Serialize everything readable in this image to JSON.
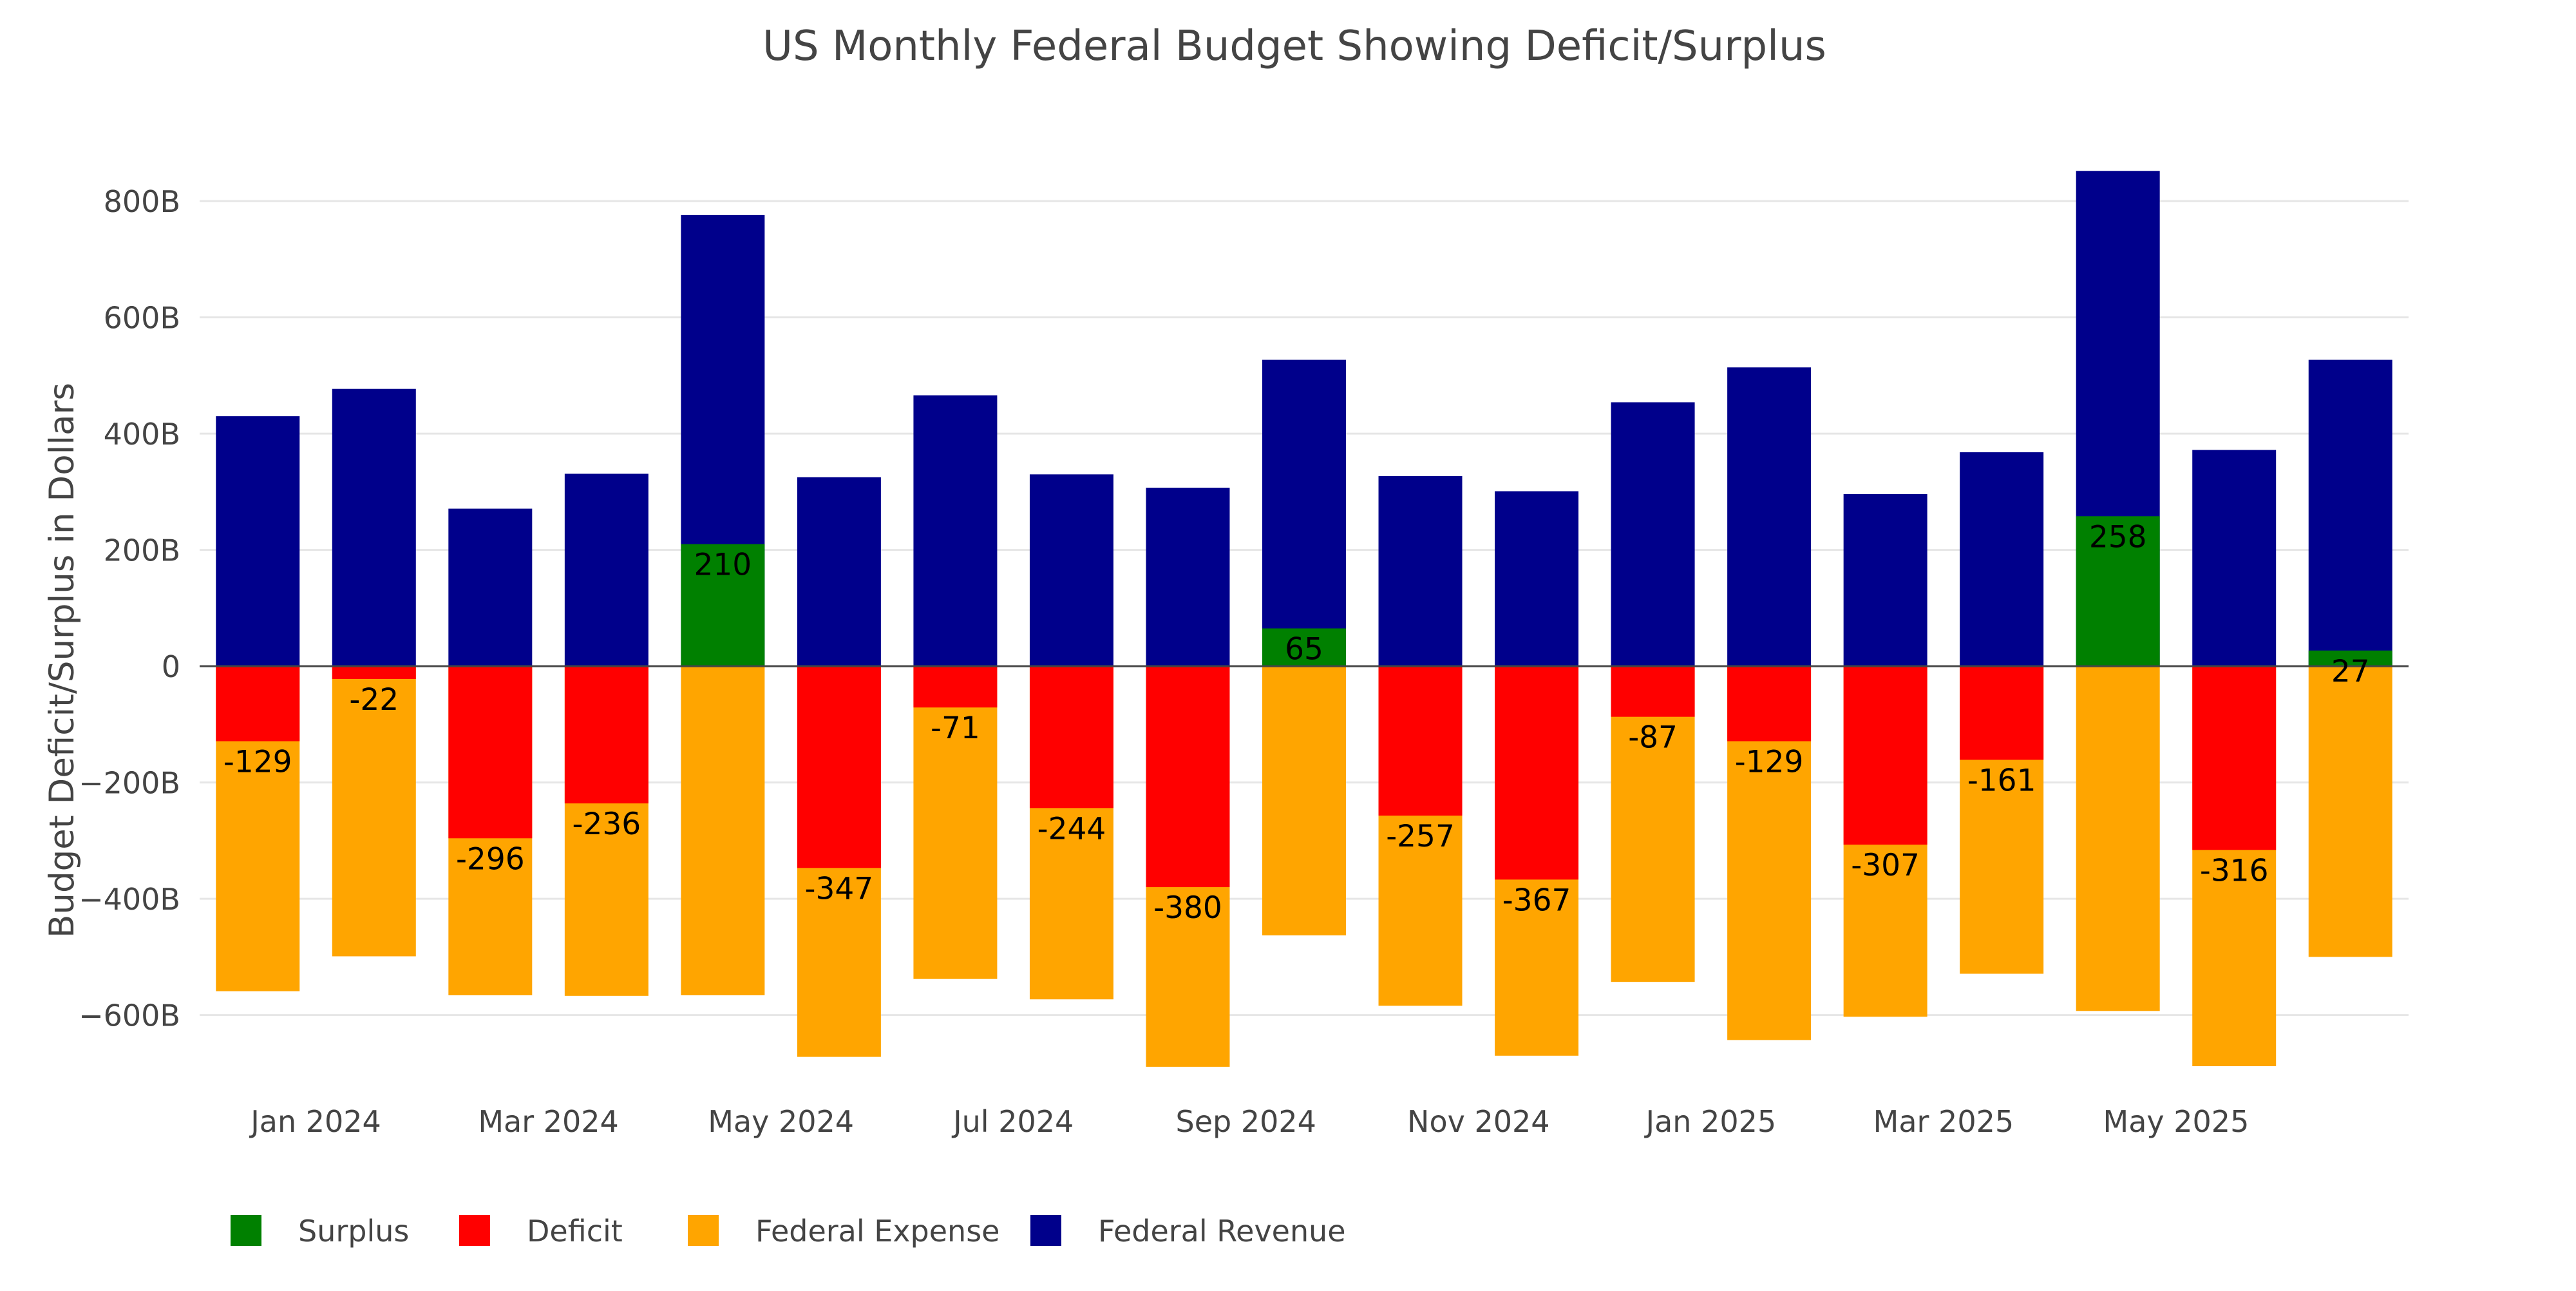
{
  "chart_data": {
    "type": "bar",
    "title": "US Monthly Federal Budget Showing Deficit/Surplus",
    "xlabel": "",
    "ylabel": "Budget Deficit/Surplus in Dollars",
    "ylim": [
      -760,
      880
    ],
    "y_ticks": [
      {
        "value": 800,
        "label": "800B"
      },
      {
        "value": 600,
        "label": "600B"
      },
      {
        "value": 400,
        "label": "400B"
      },
      {
        "value": 200,
        "label": "200B"
      },
      {
        "value": 0,
        "label": "0"
      },
      {
        "value": -200,
        "label": "−200B"
      },
      {
        "value": -400,
        "label": "−400B"
      },
      {
        "value": -600,
        "label": "−600B"
      }
    ],
    "x_ticks": [
      {
        "month": "2024-01",
        "label": "Jan 2024"
      },
      {
        "month": "2024-03",
        "label": "Mar 2024"
      },
      {
        "month": "2024-05",
        "label": "May 2024"
      },
      {
        "month": "2024-07",
        "label": "Jul 2024"
      },
      {
        "month": "2024-09",
        "label": "Sep 2024"
      },
      {
        "month": "2024-11",
        "label": "Nov 2024"
      },
      {
        "month": "2025-01",
        "label": "Jan 2025"
      },
      {
        "month": "2025-03",
        "label": "Mar 2025"
      },
      {
        "month": "2025-05",
        "label": "May 2025"
      }
    ],
    "categories": [
      "2023-12",
      "2024-01",
      "2024-02",
      "2024-03",
      "2024-04",
      "2024-05",
      "2024-06",
      "2024-07",
      "2024-08",
      "2024-09",
      "2024-10",
      "2024-11",
      "2024-12",
      "2025-01",
      "2025-02",
      "2025-03",
      "2025-04",
      "2025-05",
      "2025-06"
    ],
    "series": [
      {
        "name": "Surplus",
        "color": "#008000",
        "values": [
          0,
          0,
          0,
          0,
          210,
          0,
          0,
          0,
          0,
          65,
          0,
          0,
          0,
          0,
          0,
          0,
          258,
          0,
          27
        ]
      },
      {
        "name": "Deficit",
        "color": "#ff0000",
        "values": [
          -129,
          -22,
          -296,
          -236,
          0,
          -347,
          -71,
          -244,
          -380,
          0,
          -257,
          -367,
          -87,
          -129,
          -307,
          -161,
          0,
          -316,
          0
        ]
      },
      {
        "name": "Federal Expense",
        "color": "#ffa500",
        "values": [
          -559,
          -499,
          -566,
          -567,
          -566,
          -672,
          -538,
          -573,
          -689,
          -463,
          -584,
          -670,
          -543,
          -643,
          -603,
          -529,
          -593,
          -688,
          -500
        ]
      },
      {
        "name": "Federal Revenue",
        "color": "#00008b",
        "values": [
          430,
          477,
          271,
          331,
          776,
          325,
          466,
          330,
          307,
          527,
          327,
          301,
          454,
          514,
          296,
          368,
          852,
          372,
          527
        ]
      }
    ],
    "bar_labels": [
      "-129",
      "-22",
      "-296",
      "-236",
      "210",
      "-347",
      "-71",
      "-244",
      "-380",
      "65",
      "-257",
      "-367",
      "-87",
      "-129",
      "-307",
      "-161",
      "258",
      "-316",
      "27"
    ],
    "legend": {
      "position": "bottom-left",
      "orientation": "horizontal"
    },
    "grid": true
  }
}
